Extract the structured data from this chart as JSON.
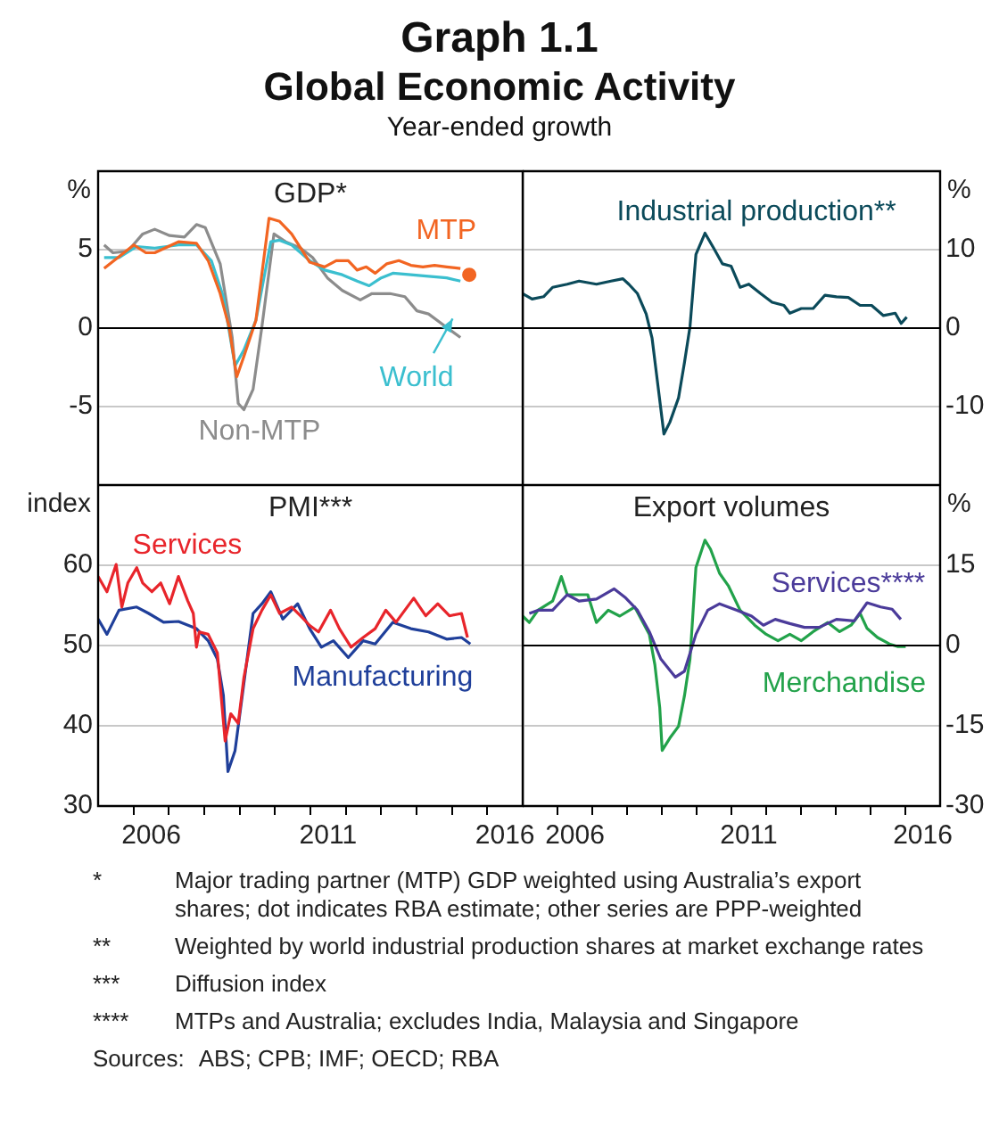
{
  "chart_data": [
    {
      "type": "other",
      "title": "Graph 1.1",
      "subtitle": "Global Economic Activity",
      "annotations": [
        "Year-ended growth"
      ]
    },
    {
      "type": "line",
      "title": "GDP*",
      "ylabel": "%",
      "xlim": [
        2005,
        2017
      ],
      "ylim": [
        -10,
        10
      ],
      "yticks": [
        -5,
        0,
        5
      ],
      "grid": "y",
      "tick_labels": "y",
      "ref_lines": [
        {
          "axis": "y",
          "value": 0,
          "color": "#000000"
        }
      ],
      "series": [
        {
          "name": "MTP",
          "color": "#f26522",
          "x": [
            2005.17,
            2006.01,
            2006.35,
            2006.6,
            2007.27,
            2007.78,
            2008.11,
            2008.45,
            2008.7,
            2008.92,
            2009.12,
            2009.46,
            2009.83,
            2010.13,
            2010.47,
            2010.98,
            2011.4,
            2011.73,
            2012.07,
            2012.32,
            2012.58,
            2012.83,
            2013.16,
            2013.5,
            2013.84,
            2014.18,
            2014.51,
            2014.85,
            2015.24
          ],
          "values": [
            3.8,
            5.3,
            4.8,
            4.8,
            5.5,
            5.4,
            4.3,
            2.2,
            0.1,
            -3.1,
            -1.8,
            0.5,
            7.0,
            6.8,
            6.0,
            4.2,
            3.9,
            4.3,
            4.3,
            3.7,
            3.9,
            3.5,
            4.1,
            4.3,
            4.0,
            3.9,
            4.0,
            3.9,
            3.8
          ]
        },
        {
          "name": "World",
          "color": "#3bbfcf",
          "x": [
            2005.17,
            2005.59,
            2006.09,
            2006.6,
            2007.27,
            2007.78,
            2008.2,
            2008.54,
            2008.87,
            2009.12,
            2009.46,
            2009.88,
            2010.13,
            2010.47,
            2010.98,
            2011.4,
            2011.9,
            2012.32,
            2012.66,
            2013.0,
            2013.33,
            2013.84,
            2014.34,
            2014.85,
            2015.24
          ],
          "values": [
            4.5,
            4.5,
            5.2,
            5.1,
            5.3,
            5.3,
            4.3,
            2.0,
            -2.4,
            -1.4,
            0.5,
            5.5,
            5.6,
            5.3,
            4.3,
            3.7,
            3.4,
            3.0,
            2.7,
            3.2,
            3.5,
            3.4,
            3.3,
            3.2,
            3.0
          ]
        },
        {
          "name": "Non-MTP",
          "color": "#8c8c8c",
          "x": [
            2005.17,
            2005.42,
            2005.84,
            2006.26,
            2006.6,
            2007.02,
            2007.44,
            2007.78,
            2008.03,
            2008.45,
            2008.79,
            2008.96,
            2009.12,
            2009.38,
            2009.63,
            2009.97,
            2010.3,
            2010.72,
            2011.06,
            2011.48,
            2011.9,
            2012.41,
            2012.74,
            2013.25,
            2013.67,
            2014.01,
            2014.34,
            2014.76,
            2015.24
          ],
          "values": [
            5.3,
            4.8,
            4.9,
            6.0,
            6.3,
            5.9,
            5.8,
            6.6,
            6.4,
            4.1,
            -0.6,
            -4.8,
            -5.2,
            -3.9,
            0.1,
            6.0,
            5.5,
            5.1,
            4.5,
            3.2,
            2.4,
            1.8,
            2.2,
            2.2,
            2.0,
            1.1,
            0.9,
            0.2,
            -0.6
          ]
        },
        {
          "type": "scatter",
          "marker": "circle",
          "color": "#f26522",
          "x": [
            2015.49
          ],
          "values": [
            3.4
          ]
        }
      ]
    },
    {
      "type": "line",
      "ylabel": "%",
      "xlim": [
        2005,
        2017
      ],
      "ylim": [
        -20,
        20
      ],
      "yticks": [
        -10,
        0,
        10
      ],
      "grid": "y",
      "tick_labels": "y",
      "ref_lines": [
        {
          "axis": "y",
          "value": 0,
          "color": "#000000"
        }
      ],
      "series": [
        {
          "name": "Industrial production**",
          "color": "#0b4a5a",
          "x": [
            2005.0,
            2005.27,
            2005.6,
            2005.86,
            2006.28,
            2006.62,
            2007.12,
            2007.54,
            2007.88,
            2008.05,
            2008.3,
            2008.55,
            2008.72,
            2008.89,
            2009.06,
            2009.23,
            2009.48,
            2009.65,
            2009.81,
            2009.98,
            2010.24,
            2010.49,
            2010.74,
            2010.99,
            2011.25,
            2011.5,
            2011.84,
            2012.17,
            2012.51,
            2012.68,
            2013.01,
            2013.35,
            2013.69,
            2014.02,
            2014.36,
            2014.7,
            2015.03,
            2015.37,
            2015.71,
            2015.88,
            2016.04
          ],
          "values": [
            4.4,
            3.7,
            4.0,
            5.2,
            5.6,
            6.0,
            5.6,
            6.0,
            6.3,
            5.6,
            4.4,
            1.8,
            -1.3,
            -7.4,
            -13.5,
            -12.0,
            -8.9,
            -4.4,
            0.2,
            9.4,
            12.1,
            10.2,
            8.2,
            7.9,
            5.2,
            5.6,
            4.4,
            3.3,
            2.9,
            1.9,
            2.5,
            2.5,
            4.2,
            4.0,
            3.9,
            2.9,
            2.9,
            1.6,
            1.9,
            0.6,
            1.4
          ]
        }
      ]
    },
    {
      "type": "line",
      "title": "PMI***",
      "ylabel": "index",
      "xlim": [
        2005,
        2017
      ],
      "xticks": [
        {
          "value": 2006,
          "label": null
        },
        {
          "value": 2006.5,
          "label": "2006"
        },
        {
          "value": 2007,
          "label": null
        },
        {
          "value": 2008,
          "label": null
        },
        {
          "value": 2009,
          "label": null
        },
        {
          "value": 2010,
          "label": null
        },
        {
          "value": 2011,
          "label": null
        },
        {
          "value": 2011.5,
          "label": "2011"
        },
        {
          "value": 2012,
          "label": null
        },
        {
          "value": 2013,
          "label": null
        },
        {
          "value": 2014,
          "label": null
        },
        {
          "value": 2015,
          "label": null
        },
        {
          "value": 2016,
          "label": null
        },
        {
          "value": 2016.5,
          "label": "2016"
        }
      ],
      "ylim": [
        30,
        70
      ],
      "yticks": [
        30,
        40,
        50,
        60
      ],
      "grid": "y",
      "series": [
        {
          "name": "Services",
          "color": "#e8252b",
          "x": [
            2005.0,
            2005.25,
            2005.51,
            2005.67,
            2005.84,
            2006.09,
            2006.26,
            2006.52,
            2006.77,
            2007.02,
            2007.27,
            2007.53,
            2007.69,
            2007.78,
            2007.86,
            2008.11,
            2008.37,
            2008.59,
            2008.75,
            2008.96,
            2009.12,
            2009.38,
            2009.63,
            2009.88,
            2010.13,
            2010.47,
            2010.72,
            2010.98,
            2011.23,
            2011.57,
            2011.82,
            2012.15,
            2012.49,
            2012.83,
            2013.13,
            2013.42,
            2013.92,
            2014.26,
            2014.6,
            2014.93,
            2015.27,
            2015.44
          ],
          "values": [
            58.6,
            56.7,
            60.1,
            54.8,
            57.8,
            59.7,
            57.8,
            56.7,
            57.8,
            55.2,
            58.6,
            55.6,
            54.0,
            49.8,
            51.7,
            51.4,
            49.1,
            38.1,
            41.5,
            40.3,
            46.0,
            52.1,
            54.4,
            56.3,
            54.0,
            54.8,
            53.7,
            52.5,
            51.7,
            54.4,
            52.1,
            49.8,
            51.0,
            52.1,
            54.4,
            52.9,
            55.9,
            53.7,
            55.2,
            53.7,
            54.0,
            51.0
          ]
        },
        {
          "name": "Manufacturing",
          "color": "#1f3f9a",
          "x": [
            2005.0,
            2005.25,
            2005.59,
            2006.09,
            2006.43,
            2006.85,
            2007.27,
            2007.78,
            2008.11,
            2008.37,
            2008.54,
            2008.67,
            2008.87,
            2009.12,
            2009.38,
            2009.63,
            2009.88,
            2010.22,
            2010.64,
            2010.98,
            2011.31,
            2011.65,
            2012.07,
            2012.49,
            2012.83,
            2013.33,
            2013.84,
            2014.34,
            2014.85,
            2015.27,
            2015.52
          ],
          "values": [
            53.3,
            51.4,
            54.4,
            54.8,
            54.0,
            52.9,
            53.0,
            52.1,
            50.6,
            48.3,
            43.8,
            34.3,
            36.9,
            45.3,
            54.0,
            55.2,
            56.7,
            53.3,
            55.2,
            52.1,
            49.8,
            50.6,
            48.5,
            50.6,
            50.2,
            52.9,
            52.1,
            51.7,
            50.8,
            51.0,
            50.2
          ]
        }
      ]
    },
    {
      "type": "line",
      "title": "Export volumes",
      "ylabel": "%",
      "xlim": [
        2005,
        2017
      ],
      "xticks": [
        {
          "value": 2006,
          "label": null
        },
        {
          "value": 2006.5,
          "label": "2006"
        },
        {
          "value": 2007,
          "label": null
        },
        {
          "value": 2008,
          "label": null
        },
        {
          "value": 2009,
          "label": null
        },
        {
          "value": 2010,
          "label": null
        },
        {
          "value": 2011,
          "label": null
        },
        {
          "value": 2011.5,
          "label": "2011"
        },
        {
          "value": 2012,
          "label": null
        },
        {
          "value": 2013,
          "label": null
        },
        {
          "value": 2014,
          "label": null
        },
        {
          "value": 2015,
          "label": null
        },
        {
          "value": 2016,
          "label": null
        },
        {
          "value": 2016.5,
          "label": "2016"
        }
      ],
      "ylim": [
        -30,
        30
      ],
      "yticks": [
        -30,
        -15,
        0,
        15
      ],
      "grid": "y",
      "ref_lines": [
        {
          "axis": "y",
          "value": 0,
          "color": "#000000"
        }
      ],
      "series": [
        {
          "name": "Services****",
          "color": "#4b3b9a",
          "x": [
            2005.19,
            2005.44,
            2005.86,
            2006.28,
            2006.62,
            2007.12,
            2007.63,
            2007.96,
            2008.3,
            2008.64,
            2008.97,
            2009.39,
            2009.65,
            2009.98,
            2010.32,
            2010.66,
            2011.16,
            2011.58,
            2011.92,
            2012.26,
            2012.68,
            2013.1,
            2013.52,
            2014.02,
            2014.53,
            2014.9,
            2015.29,
            2015.62,
            2015.87
          ],
          "values": [
            6.0,
            6.6,
            6.6,
            9.5,
            8.3,
            8.7,
            10.6,
            8.9,
            6.6,
            2.6,
            -2.5,
            -5.9,
            -4.8,
            2.1,
            6.6,
            7.8,
            6.6,
            5.5,
            3.8,
            4.9,
            4.1,
            3.4,
            3.4,
            4.9,
            4.6,
            8.0,
            7.2,
            6.8,
            4.9
          ]
        },
        {
          "name": "Merchandise",
          "color": "#22a24a",
          "x": [
            2005.0,
            2005.19,
            2005.44,
            2005.86,
            2006.11,
            2006.28,
            2006.62,
            2006.87,
            2007.12,
            2007.46,
            2007.79,
            2008.22,
            2008.64,
            2008.8,
            2008.94,
            2009.01,
            2009.23,
            2009.48,
            2009.65,
            2009.81,
            2009.98,
            2010.24,
            2010.4,
            2010.66,
            2010.91,
            2011.25,
            2011.67,
            2012.0,
            2012.34,
            2012.68,
            2013.01,
            2013.35,
            2013.77,
            2014.11,
            2014.44,
            2014.7,
            2014.9,
            2015.2,
            2015.54,
            2015.79,
            2016.01
          ],
          "values": [
            5.5,
            4.3,
            6.6,
            8.3,
            12.9,
            9.5,
            9.5,
            9.5,
            4.3,
            6.6,
            5.5,
            7.2,
            2.1,
            -3.6,
            -11.6,
            -19.6,
            -17.3,
            -15.1,
            -9.4,
            -2.5,
            14.6,
            19.7,
            18.0,
            13.5,
            11.2,
            6.6,
            3.8,
            2.1,
            0.9,
            2.1,
            0.9,
            2.6,
            4.3,
            2.6,
            3.8,
            6.0,
            3.2,
            1.5,
            0.3,
            -0.2,
            -0.2
          ]
        }
      ]
    },
    {
      "type": "other",
      "annotations": [
        "* Major trading partner (MTP) GDP weighted using Australia’s export shares; dot indicates RBA estimate; other series are PPP-weighted",
        "** Weighted by world industrial production shares at market exchange rates",
        "*** Diffusion index",
        "**** MTPs and Australia; excludes India, Malaysia and Singapore",
        "Sources: ABS; CPB; IMF; OECD; RBA"
      ]
    }
  ]
}
